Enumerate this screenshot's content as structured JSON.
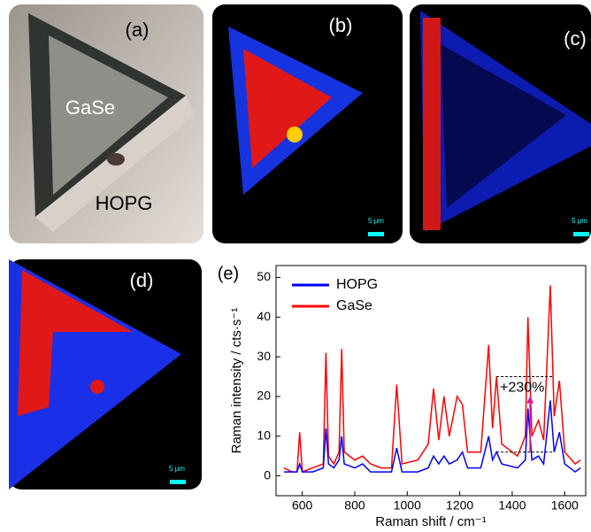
{
  "figure": {
    "panels": [
      {
        "label": "(a)",
        "texts": [
          "GaSe",
          "HOPG"
        ]
      },
      {
        "label": "(b)",
        "scale_bar": "5 μm"
      },
      {
        "label": "(c)",
        "scale_bar": "5 μm"
      },
      {
        "label": "(d)",
        "scale_bar": "5 μm"
      }
    ]
  },
  "chart_data": {
    "type": "line",
    "panel_label": "(e)",
    "x_label": "Raman shift / cm⁻¹",
    "y_label": "Raman intensity / cts·s⁻¹",
    "x": [
      530,
      560,
      580,
      590,
      600,
      640,
      680,
      690,
      700,
      720,
      740,
      750,
      760,
      800,
      830,
      860,
      900,
      940,
      960,
      980,
      1040,
      1080,
      1100,
      1120,
      1140,
      1160,
      1190,
      1210,
      1230,
      1280,
      1310,
      1325,
      1340,
      1360,
      1420,
      1450,
      1460,
      1475,
      1500,
      1520,
      1545,
      1560,
      1580,
      1600,
      1640,
      1660
    ],
    "series": [
      {
        "name": "HOPG",
        "color": "#0000ff",
        "values": [
          1,
          1,
          1,
          3,
          1,
          1,
          2,
          12,
          3,
          2,
          4,
          10,
          3,
          2,
          3,
          1,
          1,
          1,
          7,
          1,
          1,
          2,
          5,
          3,
          5,
          3,
          4,
          6,
          2,
          2,
          10,
          4,
          6,
          3,
          2,
          4,
          17,
          4,
          5,
          3,
          19,
          6,
          11,
          3,
          1,
          2
        ]
      },
      {
        "name": "GaSe",
        "color": "#ff0000",
        "values": [
          2,
          1,
          1,
          11,
          1,
          2,
          3,
          31,
          5,
          3,
          6,
          32,
          6,
          4,
          5,
          3,
          2,
          2,
          23,
          3,
          4,
          8,
          22,
          9,
          20,
          10,
          20,
          18,
          6,
          6,
          33,
          12,
          25,
          8,
          5,
          10,
          40,
          10,
          14,
          9,
          48,
          15,
          24,
          6,
          3,
          4
        ]
      }
    ],
    "annotation": "+230%",
    "xlim": [
      500,
      1680
    ],
    "xticks": [
      600,
      800,
      1000,
      1200,
      1400,
      1600
    ],
    "ylim": [
      -5,
      53
    ],
    "yticks": [
      0,
      10,
      20,
      30,
      40,
      50
    ],
    "legend": "upper left"
  }
}
